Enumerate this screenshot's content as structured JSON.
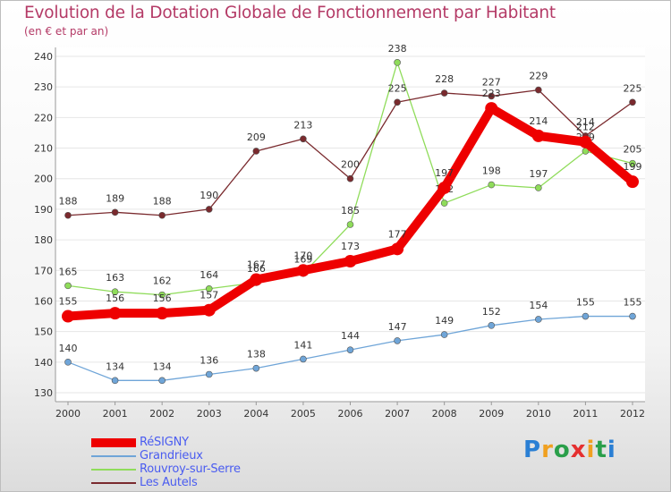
{
  "chart_data": {
    "type": "line",
    "title": "Evolution de la Dotation Globale de Fonctionnement par Habitant",
    "subtitle": "(en € et par an)",
    "x": [
      "2000",
      "2001",
      "2002",
      "2003",
      "2004",
      "2005",
      "2006",
      "2007",
      "2008",
      "2009",
      "2010",
      "2011",
      "2012"
    ],
    "ylim": [
      130,
      240
    ],
    "yticks": [
      130,
      140,
      150,
      160,
      170,
      180,
      190,
      200,
      210,
      220,
      230,
      240
    ],
    "grid": true,
    "legend_position": "bottom-left",
    "series": [
      {
        "name": "RéSIGNY",
        "color": "#ee0000",
        "values": [
          155,
          156,
          156,
          157,
          167,
          170,
          173,
          177,
          197,
          223,
          214,
          212,
          199
        ]
      },
      {
        "name": "Grandrieux",
        "color": "#6fa5d8",
        "values": [
          140,
          134,
          134,
          136,
          138,
          141,
          144,
          147,
          149,
          152,
          154,
          155,
          155
        ]
      },
      {
        "name": "Rouvroy-sur-Serre",
        "color": "#8fdc5a",
        "values": [
          165,
          163,
          162,
          164,
          166,
          169,
          185,
          238,
          192,
          198,
          197,
          209,
          205
        ]
      },
      {
        "name": "Les Autels",
        "color": "#7a2a2e",
        "values": [
          188,
          189,
          188,
          190,
          209,
          213,
          200,
          225,
          228,
          227,
          229,
          214,
          225
        ]
      }
    ]
  },
  "brand": {
    "letters": [
      "P",
      "r",
      "o",
      "x",
      "i",
      "t",
      "i"
    ],
    "colors": [
      "#2a7fd4",
      "#f0a020",
      "#2a9f4a",
      "#e53030",
      "#f0a020",
      "#2a9f4a",
      "#2a7fd4"
    ]
  }
}
